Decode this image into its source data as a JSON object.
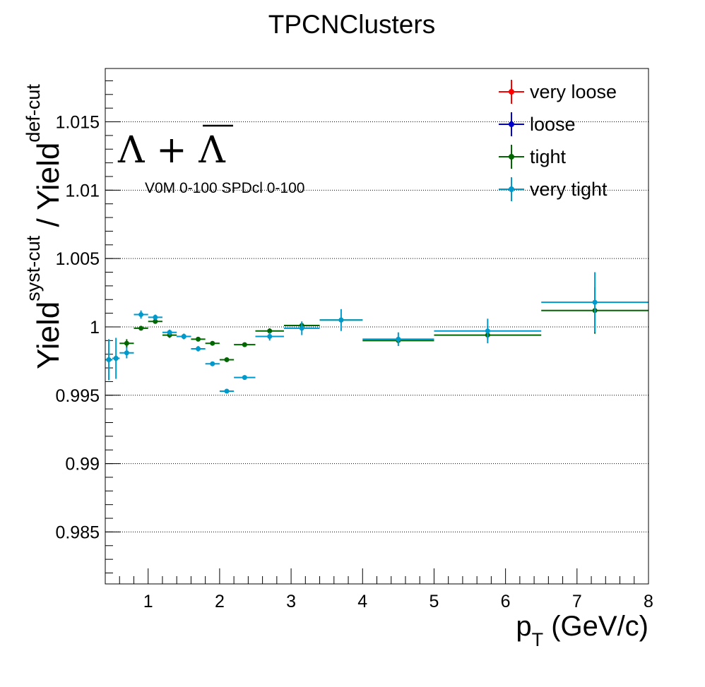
{
  "chart_data": {
    "type": "scatter",
    "title": "TPCNClusters",
    "xlabel": {
      "main": "p",
      "sub": "T",
      "unit": " (GeV/c)"
    },
    "ylabel": {
      "a": "Yield",
      "a_sup": "syst-cut",
      "sep": " / ",
      "b": "Yield",
      "b_sup": "def-cut"
    },
    "xlim": [
      0.4,
      8.0
    ],
    "ylim": [
      0.9812,
      1.0189
    ],
    "log_x": false,
    "grid": {
      "x": false,
      "y": true
    },
    "x_ticks": [
      1,
      2,
      3,
      4,
      5,
      6,
      7,
      8
    ],
    "x_tick_labels": [
      "1",
      "2",
      "3",
      "4",
      "5",
      "6",
      "7",
      "8"
    ],
    "y_ticks": [
      0.985,
      0.99,
      0.995,
      1.0,
      1.005,
      1.01,
      1.015
    ],
    "y_tick_labels": [
      "0.985",
      "0.99",
      "0.995",
      "1",
      "1.005",
      "1.01",
      "1.015"
    ],
    "legend_position": "top-right",
    "annotations": {
      "particle": {
        "a": "Λ",
        "plus": " + ",
        "b": "Λ"
      },
      "selection": "V0M 0-100 SPDcl 0-100"
    },
    "bins": [
      [
        0.4,
        0.5
      ],
      [
        0.5,
        0.6
      ],
      [
        0.6,
        0.8
      ],
      [
        0.8,
        1.0
      ],
      [
        1.0,
        1.2
      ],
      [
        1.2,
        1.4
      ],
      [
        1.4,
        1.6
      ],
      [
        1.6,
        1.8
      ],
      [
        1.8,
        2.0
      ],
      [
        2.0,
        2.2
      ],
      [
        2.2,
        2.5
      ],
      [
        2.5,
        2.9
      ],
      [
        2.9,
        3.4
      ],
      [
        3.4,
        4.0
      ],
      [
        4.0,
        5.0
      ],
      [
        5.0,
        6.5
      ],
      [
        6.5,
        8.0
      ]
    ],
    "series": [
      {
        "name": "very loose",
        "color": "#ff0000",
        "values": [],
        "errors": []
      },
      {
        "name": "loose",
        "color": "#0000cc",
        "values": [],
        "errors": []
      },
      {
        "name": "tight",
        "color": "#006600",
        "values": [
          0.9976,
          0.9977,
          0.9988,
          0.9999,
          1.0004,
          0.9994,
          0.9993,
          0.9991,
          0.9988,
          0.9976,
          0.9987,
          0.9997,
          1.0001,
          1.0005,
          0.999,
          0.9994,
          1.0012
        ],
        "errors": [
          0.0002,
          0.0002,
          0.0003,
          0.0001,
          0.0001,
          0.0002,
          0.0002,
          0.0001,
          0.0001,
          0.0001,
          0.0001,
          0.0002,
          0.0002,
          0.0002,
          0.0002,
          0.0003,
          0.0017
        ]
      },
      {
        "name": "very tight",
        "color": "#0099cc",
        "values": [
          0.9976,
          0.9977,
          0.9981,
          1.0009,
          1.0007,
          0.9996,
          0.9993,
          0.9984,
          0.9973,
          0.9953,
          0.9963,
          0.9993,
          0.9999,
          1.0005,
          0.9991,
          0.9997,
          1.0018
        ],
        "errors": [
          0.0015,
          0.0015,
          0.0004,
          0.0003,
          0.0002,
          0.0002,
          0.0002,
          0.0002,
          0.0001,
          0.0001,
          0.0001,
          0.0003,
          0.0005,
          0.0008,
          0.0005,
          0.0009,
          0.0022
        ]
      }
    ]
  }
}
